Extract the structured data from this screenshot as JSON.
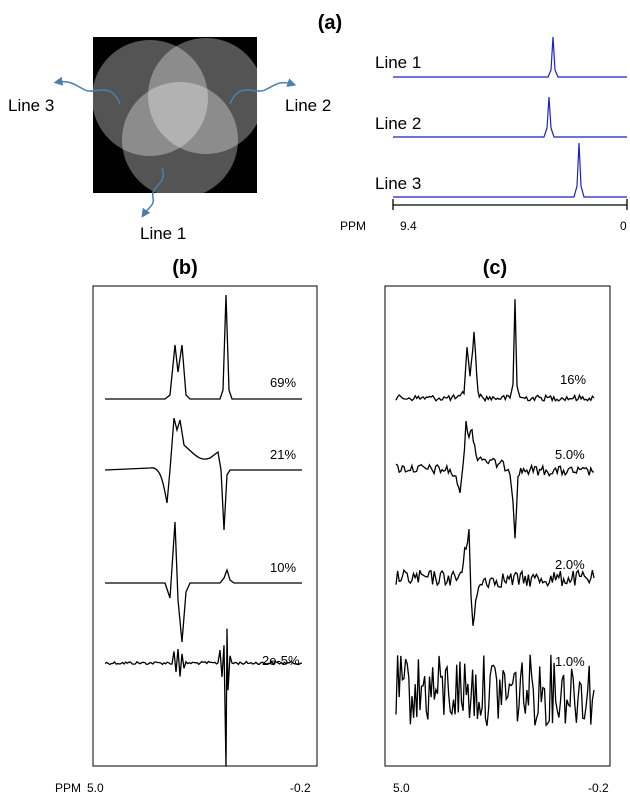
{
  "panel_a": {
    "label": "(a)",
    "phantom_labels": [
      "Line 3",
      "Line 2",
      "Line 1"
    ],
    "spectra_labels": [
      "Line 1",
      "Line 2",
      "Line 3"
    ],
    "axis_unit": "PPM",
    "axis_start": "9.4",
    "axis_end": "0"
  },
  "panel_b": {
    "label": "(b)",
    "percentages": [
      "69%",
      "21%",
      "10%",
      "2e-5%"
    ],
    "axis_unit": "PPM",
    "axis_start": "5.0",
    "axis_end": "-0.2"
  },
  "panel_c": {
    "label": "(c)",
    "percentages": [
      "16%",
      "5.0%",
      "2.0%",
      "1.0%"
    ],
    "axis_start": "5.0",
    "axis_end": "-0.2"
  }
}
